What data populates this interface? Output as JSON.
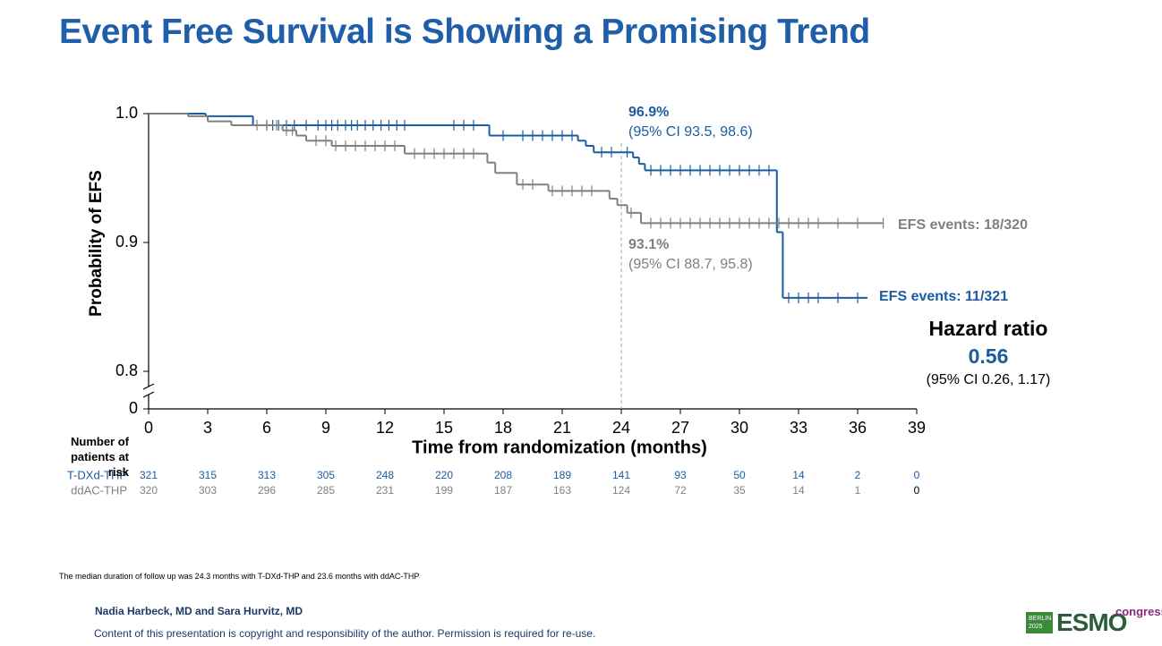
{
  "title": "Event Free Survival is Showing a Promising Trend",
  "chart_data": {
    "type": "step",
    "y_label": "Probability of EFS",
    "x_label": "Time from randomization (months)",
    "xlim": [
      0,
      39
    ],
    "xticks": [
      0,
      3,
      6,
      9,
      12,
      15,
      18,
      21,
      24,
      27,
      30,
      33,
      36,
      39
    ],
    "ylim": [
      0.8,
      1.0
    ],
    "yticks": [
      0.8,
      0.9,
      {
        "value": 1.0,
        "label": "1.0"
      }
    ],
    "y_origin_tick": 0,
    "vline_x": 24,
    "series": [
      {
        "name": "T-DXd-THP",
        "color": "#1a5da3",
        "x": [
          0,
          2.9,
          5.3,
          17.3,
          21.8,
          22.2,
          22.6,
          24.6,
          24.9,
          25.2,
          31.9,
          32.2,
          36.5
        ],
        "values": [
          1.0,
          0.998,
          0.991,
          0.983,
          0.979,
          0.975,
          0.97,
          0.966,
          0.961,
          0.956,
          0.908,
          0.857,
          0.857
        ],
        "censored": [
          6,
          6.3,
          6.6,
          7,
          7.4,
          8,
          8.6,
          9,
          9.3,
          9.6,
          10,
          10.3,
          10.6,
          11,
          11.4,
          11.8,
          12.2,
          12.6,
          13,
          15.5,
          16,
          16.5,
          18,
          19,
          19.5,
          20,
          20.5,
          21,
          21.5,
          23,
          23.5,
          24.3,
          25.5,
          26,
          26.5,
          27,
          27.5,
          28,
          28.5,
          29,
          29.5,
          30,
          30.5,
          31,
          31.5,
          32.5,
          33,
          33.5,
          34,
          35,
          36
        ]
      },
      {
        "name": "ddAC-THP",
        "color": "#808080",
        "x": [
          0,
          2,
          3,
          4.2,
          6.8,
          7.5,
          8,
          9.3,
          13,
          17.2,
          17.6,
          18.7,
          20.3,
          23.4,
          23.8,
          24.3,
          25,
          37.3
        ],
        "values": [
          1.0,
          0.998,
          0.994,
          0.991,
          0.987,
          0.983,
          0.979,
          0.975,
          0.969,
          0.962,
          0.954,
          0.945,
          0.94,
          0.934,
          0.929,
          0.923,
          0.915,
          0.915
        ],
        "censored": [
          5.5,
          6,
          6.5,
          7,
          7.3,
          8.5,
          9,
          9.5,
          10,
          10.5,
          11,
          11.5,
          12,
          12.5,
          13.5,
          14,
          14.5,
          15,
          15.5,
          16,
          16.5,
          19,
          19.5,
          20.5,
          21,
          21.5,
          22,
          22.5,
          24.5,
          25.5,
          26,
          26.5,
          27,
          27.5,
          28,
          28.5,
          29,
          29.5,
          30,
          30.5,
          31,
          31.5,
          32,
          32.5,
          33,
          33.5,
          34,
          35,
          36,
          37.3
        ]
      }
    ],
    "annotations": {
      "blue_rate": "96.9%",
      "blue_ci": "(95% CI 93.5, 98.6)",
      "gray_rate": "93.1%",
      "gray_ci": "(95% CI 88.7, 95.8)",
      "gray_events": "EFS events: 18/320",
      "blue_events": "EFS events: 11/321",
      "hr_title": "Hazard ratio",
      "hr_value": "0.56",
      "hr_ci": "(95% CI 0.26, 1.17)"
    },
    "risk_table": {
      "title": "Number of patients at risk",
      "rows": [
        [
          321,
          315,
          313,
          305,
          248,
          220,
          208,
          189,
          141,
          93,
          50,
          14,
          2,
          0
        ],
        [
          320,
          303,
          296,
          285,
          231,
          199,
          187,
          163,
          124,
          72,
          35,
          14,
          1,
          0
        ]
      ]
    }
  },
  "footnote": "The median duration of follow up was 24.3 months with T-DXd-THP and 23.6 months with ddAC-THP",
  "authors": "Nadia Harbeck, MD and Sara Hurvitz, MD",
  "copyright": "Content of this presentation is copyright and responsibility of the author. Permission is required for re-use.",
  "logo": {
    "city": "BERLIN",
    "year": "2025",
    "name": "ESMO",
    "suffix": "congress"
  }
}
